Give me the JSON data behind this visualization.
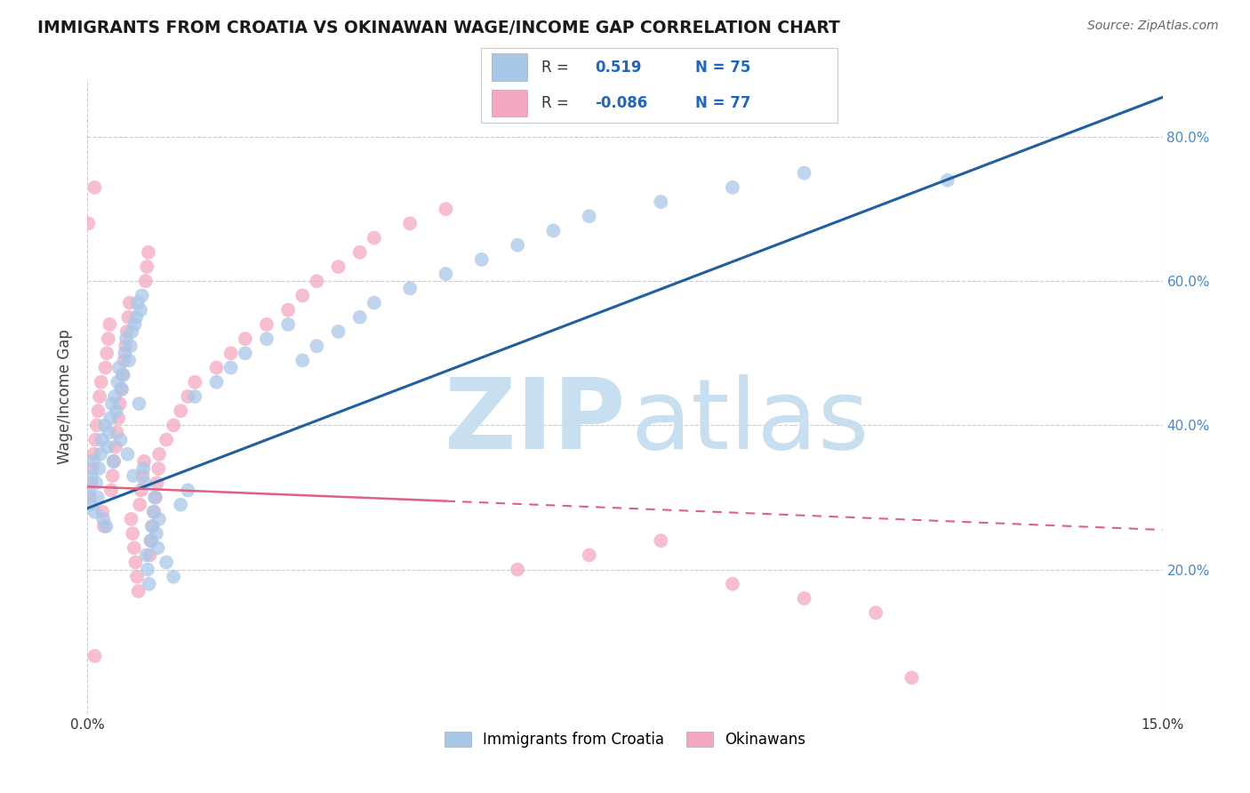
{
  "title": "IMMIGRANTS FROM CROATIA VS OKINAWAN WAGE/INCOME GAP CORRELATION CHART",
  "source": "Source: ZipAtlas.com",
  "ylabel": "Wage/Income Gap",
  "legend_label1": "Immigrants from Croatia",
  "legend_label2": "Okinawans",
  "r1": 0.519,
  "n1": 75,
  "r2": -0.086,
  "n2": 77,
  "color1": "#a8c8e8",
  "color2": "#f4a8bf",
  "line_color1": "#2060a0",
  "line_color2": "#e06080",
  "xmin": 0.0,
  "xmax": 0.15,
  "ymin": 0.0,
  "ymax": 0.88,
  "blue_line_x0": 0.0,
  "blue_line_y0": 0.285,
  "blue_line_x1": 0.15,
  "blue_line_y1": 0.855,
  "pink_line_x0": 0.0,
  "pink_line_y0": 0.315,
  "pink_line_x1": 0.15,
  "pink_line_y1": 0.255,
  "blue_scatter_x": [
    0.0002,
    0.0004,
    0.0006,
    0.0008,
    0.001,
    0.0012,
    0.0014,
    0.0016,
    0.0018,
    0.002,
    0.0022,
    0.0024,
    0.0026,
    0.0028,
    0.003,
    0.0032,
    0.0034,
    0.0036,
    0.0038,
    0.004,
    0.0042,
    0.0044,
    0.0046,
    0.0048,
    0.005,
    0.0052,
    0.0054,
    0.0056,
    0.0058,
    0.006,
    0.0062,
    0.0064,
    0.0066,
    0.0068,
    0.007,
    0.0072,
    0.0074,
    0.0076,
    0.0078,
    0.008,
    0.0082,
    0.0084,
    0.0086,
    0.0088,
    0.009,
    0.0092,
    0.0094,
    0.0096,
    0.0098,
    0.01,
    0.011,
    0.012,
    0.013,
    0.014,
    0.015,
    0.018,
    0.02,
    0.022,
    0.025,
    0.028,
    0.03,
    0.032,
    0.035,
    0.038,
    0.04,
    0.045,
    0.05,
    0.055,
    0.06,
    0.065,
    0.07,
    0.08,
    0.09,
    0.1,
    0.12
  ],
  "blue_scatter_y": [
    0.31,
    0.29,
    0.33,
    0.35,
    0.28,
    0.32,
    0.3,
    0.34,
    0.36,
    0.38,
    0.27,
    0.4,
    0.26,
    0.37,
    0.39,
    0.41,
    0.43,
    0.35,
    0.44,
    0.42,
    0.46,
    0.48,
    0.38,
    0.45,
    0.47,
    0.5,
    0.52,
    0.36,
    0.49,
    0.51,
    0.53,
    0.33,
    0.54,
    0.55,
    0.57,
    0.43,
    0.56,
    0.58,
    0.34,
    0.32,
    0.22,
    0.2,
    0.18,
    0.24,
    0.26,
    0.28,
    0.3,
    0.25,
    0.23,
    0.27,
    0.21,
    0.19,
    0.29,
    0.31,
    0.44,
    0.46,
    0.48,
    0.5,
    0.52,
    0.54,
    0.49,
    0.51,
    0.53,
    0.55,
    0.57,
    0.59,
    0.61,
    0.63,
    0.65,
    0.67,
    0.69,
    0.71,
    0.73,
    0.75,
    0.74
  ],
  "pink_scatter_x": [
    0.0001,
    0.0003,
    0.0005,
    0.0007,
    0.0009,
    0.0011,
    0.0013,
    0.0015,
    0.0017,
    0.0019,
    0.0021,
    0.0023,
    0.0025,
    0.0027,
    0.0029,
    0.0031,
    0.0033,
    0.0035,
    0.0037,
    0.0039,
    0.0041,
    0.0043,
    0.0045,
    0.0047,
    0.0049,
    0.0051,
    0.0053,
    0.0055,
    0.0057,
    0.0059,
    0.0061,
    0.0063,
    0.0065,
    0.0067,
    0.0069,
    0.0071,
    0.0073,
    0.0075,
    0.0077,
    0.0079,
    0.0081,
    0.0083,
    0.0085,
    0.0087,
    0.0089,
    0.0091,
    0.0093,
    0.0095,
    0.0097,
    0.0099,
    0.01,
    0.011,
    0.012,
    0.013,
    0.014,
    0.015,
    0.018,
    0.02,
    0.022,
    0.025,
    0.028,
    0.03,
    0.032,
    0.035,
    0.038,
    0.04,
    0.045,
    0.05,
    0.06,
    0.07,
    0.08,
    0.09,
    0.1,
    0.11,
    0.115,
    0.001,
    0.001
  ],
  "pink_scatter_y": [
    0.68,
    0.3,
    0.32,
    0.34,
    0.36,
    0.38,
    0.4,
    0.42,
    0.44,
    0.46,
    0.28,
    0.26,
    0.48,
    0.5,
    0.52,
    0.54,
    0.31,
    0.33,
    0.35,
    0.37,
    0.39,
    0.41,
    0.43,
    0.45,
    0.47,
    0.49,
    0.51,
    0.53,
    0.55,
    0.57,
    0.27,
    0.25,
    0.23,
    0.21,
    0.19,
    0.17,
    0.29,
    0.31,
    0.33,
    0.35,
    0.6,
    0.62,
    0.64,
    0.22,
    0.24,
    0.26,
    0.28,
    0.3,
    0.32,
    0.34,
    0.36,
    0.38,
    0.4,
    0.42,
    0.44,
    0.46,
    0.48,
    0.5,
    0.52,
    0.54,
    0.56,
    0.58,
    0.6,
    0.62,
    0.64,
    0.66,
    0.68,
    0.7,
    0.2,
    0.22,
    0.24,
    0.18,
    0.16,
    0.14,
    0.05,
    0.73,
    0.08
  ],
  "watermark_zip_color": "#c8dff0",
  "watermark_atlas_color": "#c8dff0",
  "background_color": "#ffffff"
}
